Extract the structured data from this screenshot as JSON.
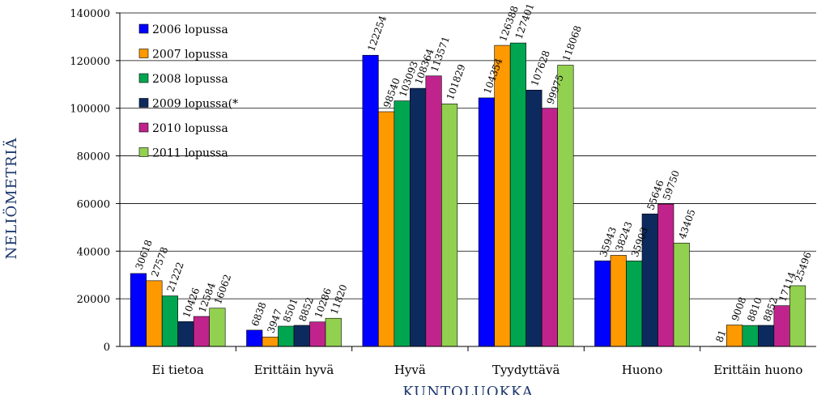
{
  "chart_data": {
    "type": "bar",
    "title": "",
    "xlabel": "KUNTOLUOKKA",
    "ylabel": "NELIÖMETRIÄ",
    "ylim": [
      0,
      140000
    ],
    "yticks": [
      0,
      20000,
      40000,
      60000,
      80000,
      100000,
      120000,
      140000
    ],
    "ytick_labels": [
      "0",
      "20000",
      "40000",
      "60000",
      "80000",
      "100000",
      "120000",
      "140000"
    ],
    "grid": true,
    "legend_position": "top-left",
    "categories": [
      "Ei tietoa",
      "Erittäin hyvä",
      "Hyvä",
      "Tyydyttävä",
      "Huono",
      "Erittäin huono"
    ],
    "series": [
      {
        "name": "2006 lopussa",
        "color": "#0000ff",
        "values": [
          30618,
          6838,
          122254,
          104354,
          35943,
          81
        ],
        "labels": [
          "30618",
          "6838",
          "122254",
          "104354",
          "35943",
          "81"
        ]
      },
      {
        "name": "2007 lopussa",
        "color": "#ff9900",
        "values": [
          27578,
          3947,
          98540,
          126388,
          38243,
          9008
        ],
        "labels": [
          "27578",
          "3947",
          "98540",
          "126388",
          "38243",
          "9008"
        ]
      },
      {
        "name": "2008 lopussa",
        "color": "#00a550",
        "values": [
          21222,
          8501,
          103093,
          127401,
          35903,
          8810
        ],
        "labels": [
          "21222",
          "8501",
          "103093",
          "127401",
          "35903",
          "8810"
        ]
      },
      {
        "name": "2009 lopussa(*",
        "color": "#0d2a5e",
        "values": [
          10426,
          8852,
          108364,
          107628,
          55646,
          8852
        ],
        "labels": [
          "10426",
          "8852",
          "108364",
          "107628",
          "55646",
          "8852"
        ]
      },
      {
        "name": "2010 lopussa",
        "color": "#c0248c",
        "values": [
          12584,
          10286,
          113571,
          99975,
          59750,
          17114
        ],
        "labels": [
          "12584",
          "10286",
          "113571",
          "99975",
          "59750",
          "17114"
        ]
      },
      {
        "name": "2011 lopussa",
        "color": "#92d050",
        "values": [
          16062,
          11820,
          101829,
          118068,
          43405,
          25496
        ],
        "labels": [
          "16062",
          "11820",
          "101829",
          "118068",
          "43405",
          "25496"
        ]
      }
    ]
  }
}
